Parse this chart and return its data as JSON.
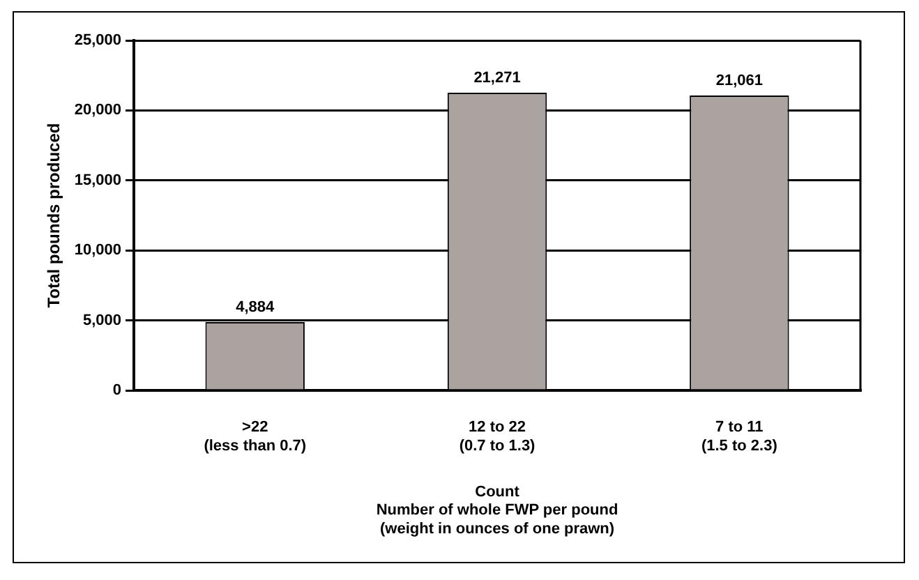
{
  "chart_data": {
    "type": "bar",
    "categories": [
      ">22\n(less than 0.7)",
      "12 to 22\n(0.7 to 1.3)",
      "7 to 11\n(1.5 to 2.3)"
    ],
    "values": [
      4884,
      21271,
      21061
    ],
    "color": "#aaa3a0",
    "value_labels": [
      "4,884",
      "21,271",
      "21,061"
    ],
    "ylabel": "Total pounds produced",
    "xlabel": "Count\nNumber of whole FWP per pound\n(weight in ounces of one prawn)",
    "ylim": [
      0,
      25000
    ],
    "yticks": [
      0,
      {
        "value": 5000,
        "label": "5,000"
      },
      {
        "value": 10000,
        "label": "10,000"
      },
      {
        "value": 15000,
        "label": "15,000"
      },
      {
        "value": 20000,
        "label": "20,000"
      },
      {
        "value": 25000,
        "label": "25,000"
      }
    ],
    "grid": "y",
    "legend": false
  }
}
